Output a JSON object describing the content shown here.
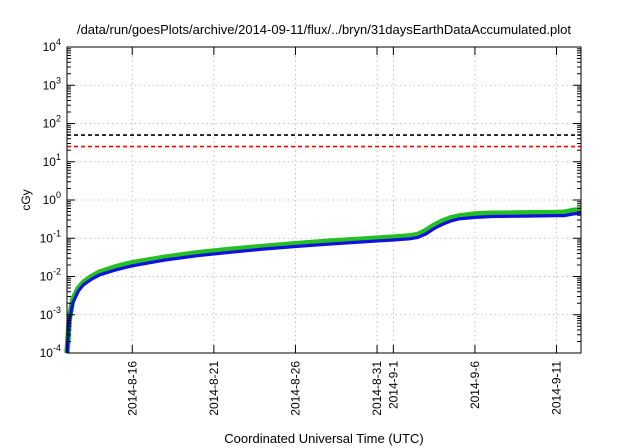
{
  "chart_data": {
    "type": "line",
    "title": "/data/run/goesPlots/archive/2014-09-11/flux/../bryn/31daysEarthDataAccumulated.plot",
    "xlabel": "Coordinated Universal Time (UTC)",
    "ylabel": "cGy",
    "xlim": [
      "2014-08-12",
      "2014-09-12.5"
    ],
    "ylim": [
      0.0001,
      10000
    ],
    "yscale": "log",
    "grid": true,
    "x_ticks": [
      {
        "x": "2014-08-16",
        "label": "2014-8-16"
      },
      {
        "x": "2014-08-21",
        "label": "2014-8-21"
      },
      {
        "x": "2014-08-26",
        "label": "2014-8-26"
      },
      {
        "x": "2014-08-31",
        "label": "2014-8-31"
      },
      {
        "x": "2014-09-01",
        "label": "2014-9-1"
      },
      {
        "x": "2014-09-06",
        "label": "2014-9-6"
      },
      {
        "x": "2014-09-11",
        "label": "2014-9-11"
      }
    ],
    "y_ticks": [
      {
        "y": 0.0001,
        "base": "10",
        "exp": "-4"
      },
      {
        "y": 0.001,
        "base": "10",
        "exp": "-3"
      },
      {
        "y": 0.01,
        "base": "10",
        "exp": "-2"
      },
      {
        "y": 0.1,
        "base": "10",
        "exp": "-1"
      },
      {
        "y": 1,
        "base": "10",
        "exp": "0"
      },
      {
        "y": 10,
        "base": "10",
        "exp": "1"
      },
      {
        "y": 100,
        "base": "10",
        "exp": "2"
      },
      {
        "y": 1000,
        "base": "10",
        "exp": "3"
      },
      {
        "y": 10000,
        "base": "10",
        "exp": "4"
      }
    ],
    "hlines": [
      {
        "y": 50,
        "color": "#000000",
        "style": "dashed"
      },
      {
        "y": 25,
        "color": "#ff0000",
        "style": "dashed"
      }
    ],
    "series": [
      {
        "color": "#22c022",
        "points": [
          [
            "2014-08-12",
            0.0001
          ],
          [
            "2014-08-12.15",
            0.0008
          ],
          [
            "2014-08-12.35",
            0.0025
          ],
          [
            "2014-08-12.7",
            0.005
          ],
          [
            "2014-08-13",
            0.007
          ],
          [
            "2014-08-13.5",
            0.01
          ],
          [
            "2014-08-14",
            0.013
          ],
          [
            "2014-08-15",
            0.018
          ],
          [
            "2014-08-16",
            0.023
          ],
          [
            "2014-08-18",
            0.032
          ],
          [
            "2014-08-20",
            0.042
          ],
          [
            "2014-08-22",
            0.051
          ],
          [
            "2014-08-24",
            0.061
          ],
          [
            "2014-08-26",
            0.072
          ],
          [
            "2014-08-28",
            0.083
          ],
          [
            "2014-08-30",
            0.094
          ],
          [
            "2014-09-01",
            0.107
          ],
          [
            "2014-09-02",
            0.115
          ],
          [
            "2014-09-02.5",
            0.125
          ],
          [
            "2014-09-03",
            0.16
          ],
          [
            "2014-09-03.5",
            0.22
          ],
          [
            "2014-09-04",
            0.28
          ],
          [
            "2014-09-04.5",
            0.34
          ],
          [
            "2014-09-05",
            0.38
          ],
          [
            "2014-09-06",
            0.43
          ],
          [
            "2014-09-07",
            0.45
          ],
          [
            "2014-09-09",
            0.46
          ],
          [
            "2014-09-11",
            0.47
          ],
          [
            "2014-09-11.5",
            0.48
          ],
          [
            "2014-09-12",
            0.53
          ],
          [
            "2014-09-12.5",
            0.56
          ]
        ]
      },
      {
        "color": "#1010e0",
        "points": [
          [
            "2014-08-12",
            0.0001
          ],
          [
            "2014-08-12.15",
            0.0007
          ],
          [
            "2014-08-12.35",
            0.002
          ],
          [
            "2014-08-12.7",
            0.0042
          ],
          [
            "2014-08-13",
            0.006
          ],
          [
            "2014-08-13.5",
            0.0085
          ],
          [
            "2014-08-14",
            0.011
          ],
          [
            "2014-08-15",
            0.015
          ],
          [
            "2014-08-16",
            0.019
          ],
          [
            "2014-08-18",
            0.027
          ],
          [
            "2014-08-20",
            0.035
          ],
          [
            "2014-08-22",
            0.043
          ],
          [
            "2014-08-24",
            0.052
          ],
          [
            "2014-08-26",
            0.061
          ],
          [
            "2014-08-28",
            0.07
          ],
          [
            "2014-08-30",
            0.08
          ],
          [
            "2014-09-01",
            0.09
          ],
          [
            "2014-09-02",
            0.097
          ],
          [
            "2014-09-02.5",
            0.105
          ],
          [
            "2014-09-03",
            0.13
          ],
          [
            "2014-09-03.5",
            0.18
          ],
          [
            "2014-09-04",
            0.23
          ],
          [
            "2014-09-04.5",
            0.28
          ],
          [
            "2014-09-05",
            0.32
          ],
          [
            "2014-09-06",
            0.35
          ],
          [
            "2014-09-07",
            0.37
          ],
          [
            "2014-09-09",
            0.38
          ],
          [
            "2014-09-11",
            0.39
          ],
          [
            "2014-09-11.5",
            0.39
          ],
          [
            "2014-09-12",
            0.43
          ],
          [
            "2014-09-12.5",
            0.46
          ]
        ]
      }
    ]
  }
}
